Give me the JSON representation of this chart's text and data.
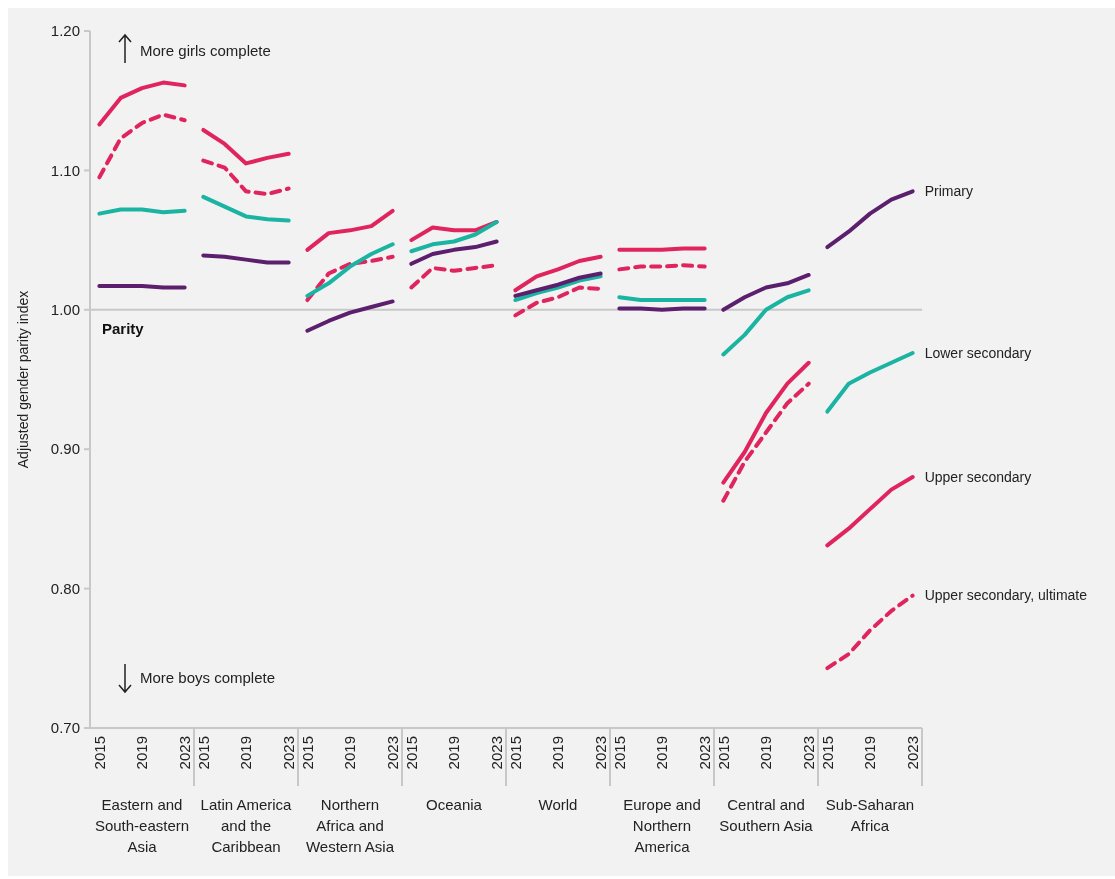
{
  "chart_data": [
    {
      "type": "line",
      "xlabel": "Eastern and South-eastern Asia",
      "ylabel": "Adjusted gender parity index",
      "x": [
        2015,
        2017,
        2019,
        2021,
        2023
      ],
      "xlim": [
        2014.5,
        2023.5
      ],
      "xticks": [
        2015,
        2019,
        2023
      ],
      "ylim": [
        0.7,
        1.2
      ],
      "yticks": [
        {
          "value": 0.7,
          "label": "0.70"
        },
        {
          "value": 0.8,
          "label": "0.80"
        },
        {
          "value": 0.9,
          "label": "0.90"
        },
        {
          "value": 1.0,
          "label": "1.00"
        },
        {
          "value": 1.1,
          "label": "1.10"
        },
        {
          "value": 1.2,
          "label": "1.20"
        }
      ],
      "annotations": [
        "More girls complete",
        "More boys complete"
      ],
      "ref_lines": [
        {
          "axis": "y",
          "value": 1.0,
          "label": "Parity"
        }
      ],
      "series": [
        {
          "color": "#e0245e",
          "line_style": "solid",
          "values": [
            1.133,
            1.152,
            1.159,
            1.163,
            1.161
          ]
        },
        {
          "color": "#e0245e",
          "line_style": "dashed",
          "values": [
            1.095,
            1.123,
            1.134,
            1.14,
            1.136
          ]
        },
        {
          "color": "#1bb3a1",
          "line_style": "solid",
          "values": [
            1.069,
            1.072,
            1.072,
            1.07,
            1.071
          ]
        },
        {
          "color": "#5c1f6e",
          "line_style": "solid",
          "values": [
            1.017,
            1.017,
            1.017,
            1.016,
            1.016
          ]
        }
      ]
    },
    {
      "type": "line",
      "xlabel": "Latin America and the Caribbean",
      "x": [
        2015,
        2017,
        2019,
        2021,
        2023
      ],
      "xlim": [
        2014.5,
        2023.5
      ],
      "xticks": [
        2015,
        2019,
        2023
      ],
      "ylim": [
        0.7,
        1.2
      ],
      "tick_labels": "x",
      "ref_lines": [
        {
          "axis": "y",
          "value": 1.0
        }
      ],
      "series": [
        {
          "color": "#e0245e",
          "line_style": "solid",
          "values": [
            1.129,
            1.119,
            1.105,
            1.109,
            1.112
          ]
        },
        {
          "color": "#e0245e",
          "line_style": "dashed",
          "values": [
            1.107,
            1.102,
            1.085,
            1.083,
            1.087
          ]
        },
        {
          "color": "#1bb3a1",
          "line_style": "solid",
          "values": [
            1.081,
            1.074,
            1.067,
            1.065,
            1.064
          ]
        },
        {
          "color": "#5c1f6e",
          "line_style": "solid",
          "values": [
            1.039,
            1.038,
            1.036,
            1.034,
            1.034
          ]
        }
      ]
    },
    {
      "type": "line",
      "xlabel": "Northern Africa and Western Asia",
      "x": [
        2015,
        2017,
        2019,
        2021,
        2023
      ],
      "xlim": [
        2014.5,
        2023.5
      ],
      "xticks": [
        2015,
        2019,
        2023
      ],
      "ylim": [
        0.7,
        1.2
      ],
      "tick_labels": "x",
      "ref_lines": [
        {
          "axis": "y",
          "value": 1.0
        }
      ],
      "series": [
        {
          "color": "#e0245e",
          "line_style": "solid",
          "values": [
            1.043,
            1.055,
            1.057,
            1.06,
            1.071
          ]
        },
        {
          "color": "#e0245e",
          "line_style": "dashed",
          "values": [
            1.007,
            1.026,
            1.033,
            1.035,
            1.038
          ]
        },
        {
          "color": "#1bb3a1",
          "line_style": "solid",
          "values": [
            1.01,
            1.019,
            1.031,
            1.04,
            1.047
          ]
        },
        {
          "color": "#5c1f6e",
          "line_style": "solid",
          "values": [
            0.985,
            0.992,
            0.998,
            1.002,
            1.006
          ]
        }
      ]
    },
    {
      "type": "line",
      "xlabel": "Oceania",
      "x": [
        2015,
        2017,
        2019,
        2021,
        2023
      ],
      "xlim": [
        2014.5,
        2023.5
      ],
      "xticks": [
        2015,
        2019,
        2023
      ],
      "ylim": [
        0.7,
        1.2
      ],
      "tick_labels": "x",
      "ref_lines": [
        {
          "axis": "y",
          "value": 1.0
        }
      ],
      "series": [
        {
          "color": "#e0245e",
          "line_style": "solid",
          "values": [
            1.05,
            1.059,
            1.057,
            1.057,
            1.063
          ]
        },
        {
          "color": "#e0245e",
          "line_style": "dashed",
          "values": [
            1.016,
            1.03,
            1.028,
            1.03,
            1.032
          ]
        },
        {
          "color": "#1bb3a1",
          "line_style": "solid",
          "values": [
            1.042,
            1.047,
            1.049,
            1.054,
            1.063
          ]
        },
        {
          "color": "#5c1f6e",
          "line_style": "solid",
          "values": [
            1.033,
            1.04,
            1.043,
            1.045,
            1.049
          ]
        }
      ]
    },
    {
      "type": "line",
      "xlabel": "World",
      "x": [
        2015,
        2017,
        2019,
        2021,
        2023
      ],
      "xlim": [
        2014.5,
        2023.5
      ],
      "xticks": [
        2015,
        2019,
        2023
      ],
      "ylim": [
        0.7,
        1.2
      ],
      "tick_labels": "x",
      "ref_lines": [
        {
          "axis": "y",
          "value": 1.0
        }
      ],
      "series": [
        {
          "color": "#e0245e",
          "line_style": "solid",
          "values": [
            1.014,
            1.024,
            1.029,
            1.035,
            1.038
          ]
        },
        {
          "color": "#e0245e",
          "line_style": "dashed",
          "values": [
            0.996,
            1.005,
            1.009,
            1.016,
            1.015
          ]
        },
        {
          "color": "#1bb3a1",
          "line_style": "solid",
          "values": [
            1.007,
            1.012,
            1.016,
            1.021,
            1.024
          ]
        },
        {
          "color": "#5c1f6e",
          "line_style": "solid",
          "values": [
            1.01,
            1.014,
            1.018,
            1.023,
            1.026
          ]
        }
      ]
    },
    {
      "type": "line",
      "xlabel": "Europe and Northern America",
      "x": [
        2015,
        2017,
        2019,
        2021,
        2023
      ],
      "xlim": [
        2014.5,
        2023.5
      ],
      "xticks": [
        2015,
        2019,
        2023
      ],
      "ylim": [
        0.7,
        1.2
      ],
      "tick_labels": "x",
      "ref_lines": [
        {
          "axis": "y",
          "value": 1.0
        }
      ],
      "series": [
        {
          "color": "#e0245e",
          "line_style": "solid",
          "values": [
            1.043,
            1.043,
            1.043,
            1.044,
            1.044
          ]
        },
        {
          "color": "#e0245e",
          "line_style": "dashed",
          "values": [
            1.029,
            1.031,
            1.031,
            1.032,
            1.031
          ]
        },
        {
          "color": "#1bb3a1",
          "line_style": "solid",
          "values": [
            1.009,
            1.007,
            1.007,
            1.007,
            1.007
          ]
        },
        {
          "color": "#5c1f6e",
          "line_style": "solid",
          "values": [
            1.001,
            1.001,
            1.0,
            1.001,
            1.001
          ]
        }
      ]
    },
    {
      "type": "line",
      "xlabel": "Central and Southern Asia",
      "x": [
        2015,
        2017,
        2019,
        2021,
        2023
      ],
      "xlim": [
        2014.5,
        2023.5
      ],
      "xticks": [
        2015,
        2019,
        2023
      ],
      "ylim": [
        0.7,
        1.2
      ],
      "tick_labels": "x",
      "ref_lines": [
        {
          "axis": "y",
          "value": 1.0
        }
      ],
      "series": [
        {
          "color": "#e0245e",
          "line_style": "solid",
          "values": [
            0.876,
            0.898,
            0.926,
            0.947,
            0.962
          ]
        },
        {
          "color": "#e0245e",
          "line_style": "dashed",
          "values": [
            0.863,
            0.891,
            0.912,
            0.933,
            0.947
          ]
        },
        {
          "color": "#1bb3a1",
          "line_style": "solid",
          "values": [
            0.968,
            0.982,
            1.0,
            1.009,
            1.014
          ]
        },
        {
          "color": "#5c1f6e",
          "line_style": "solid",
          "values": [
            1.0,
            1.009,
            1.016,
            1.019,
            1.025
          ]
        }
      ]
    },
    {
      "type": "line",
      "xlabel": "Sub-Saharan Africa",
      "x": [
        2015,
        2017,
        2019,
        2021,
        2023
      ],
      "xlim": [
        2014.5,
        2023.5
      ],
      "xticks": [
        2015,
        2019,
        2023
      ],
      "ylim": [
        0.7,
        1.2
      ],
      "tick_labels": "x",
      "ref_lines": [
        {
          "axis": "y",
          "value": 1.0
        }
      ],
      "series": [
        {
          "name": "Upper secondary",
          "color": "#e0245e",
          "line_style": "solid",
          "values": [
            0.831,
            0.843,
            0.857,
            0.871,
            0.88
          ]
        },
        {
          "name": "Upper secondary, ultimate",
          "color": "#e0245e",
          "line_style": "dashed",
          "values": [
            0.743,
            0.753,
            0.77,
            0.784,
            0.795
          ]
        },
        {
          "name": "Lower secondary",
          "color": "#1bb3a1",
          "line_style": "solid",
          "values": [
            0.927,
            0.947,
            0.955,
            0.962,
            0.969
          ]
        },
        {
          "name": "Primary",
          "color": "#5c1f6e",
          "line_style": "solid",
          "values": [
            1.045,
            1.056,
            1.069,
            1.079,
            1.085
          ]
        }
      ]
    }
  ]
}
